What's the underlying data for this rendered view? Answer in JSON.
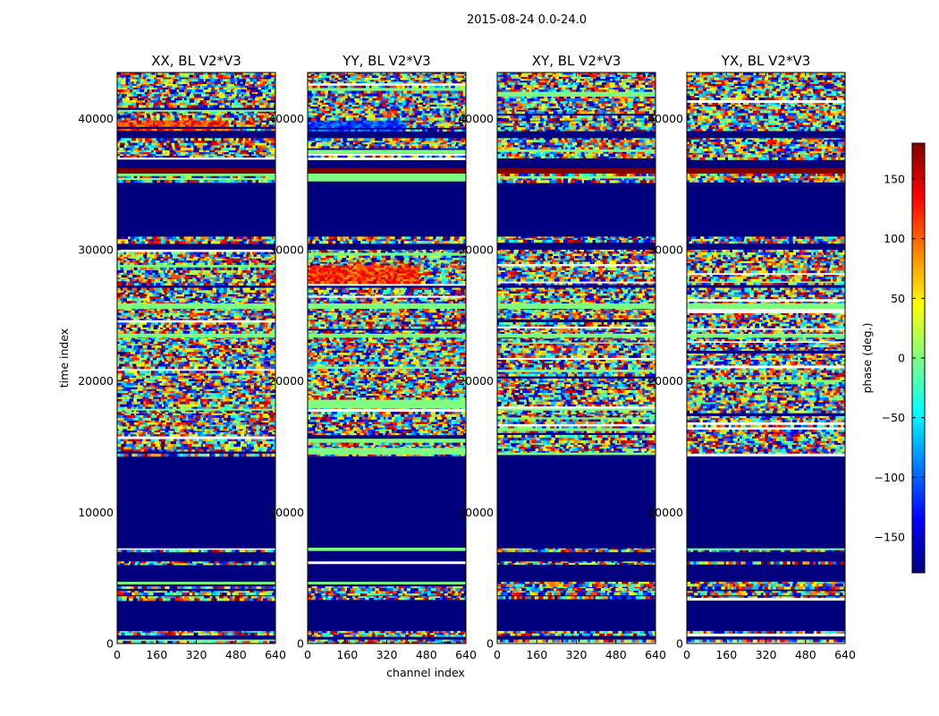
{
  "chart_data": {
    "type": "heatmap",
    "title": "2015-08-24 0.0-24.0",
    "xlabel": "channel index",
    "ylabel": "time index",
    "xlim": [
      0,
      640
    ],
    "ylim": [
      0,
      43500
    ],
    "x_ticks": [
      "0",
      "160",
      "320",
      "480",
      "640"
    ],
    "y_ticks": [
      "0",
      "10000",
      "20000",
      "30000",
      "40000"
    ],
    "colorbar": {
      "label": "phase (deg.)",
      "range": [
        -180,
        180
      ],
      "ticks": [
        "−150",
        "−100",
        "−50",
        "0",
        "50",
        "100",
        "150"
      ],
      "colormap": "jet",
      "colors": [
        "#00007f",
        "#0000ff",
        "#007fff",
        "#00ffff",
        "#7fff7f",
        "#ffff00",
        "#ff7f00",
        "#ff0000",
        "#7f0000"
      ]
    },
    "panels": [
      {
        "title": "XX, BL V2*V3",
        "bands": [
          {
            "y": [
              0,
              300
            ],
            "state": "noise"
          },
          {
            "y": [
              650,
              950
            ],
            "state": "noise"
          },
          {
            "y": [
              3400,
              3600
            ],
            "state": "noise"
          },
          {
            "y": [
              3800,
              4000
            ],
            "state": "noise"
          },
          {
            "y": [
              4200,
              4350
            ],
            "state": "noise"
          },
          {
            "y": [
              4500,
              4700
            ],
            "state": "green"
          },
          {
            "y": [
              6100,
              6250
            ],
            "state": "noise"
          },
          {
            "y": [
              7050,
              7250
            ],
            "state": "noise"
          },
          {
            "y": [
              14400,
              27100
            ],
            "state": "noise"
          },
          {
            "y": [
              25500,
              25900
            ],
            "state": "green"
          },
          {
            "y": [
              23300,
              23600
            ],
            "state": "green"
          },
          {
            "y": [
              27400,
              30000
            ],
            "state": "noise"
          },
          {
            "y": [
              30600,
              31000
            ],
            "state": "noise"
          },
          {
            "y": [
              35200,
              35800
            ],
            "state": "noise"
          },
          {
            "y": [
              35800,
              36200
            ],
            "state": "darkred"
          },
          {
            "y": [
              37000,
              38500
            ],
            "state": "noise"
          },
          {
            "y": [
              39100,
              40000
            ],
            "state": "redish"
          },
          {
            "y": [
              40000,
              43500
            ],
            "state": "noise"
          }
        ]
      },
      {
        "title": "YY, BL V2*V3",
        "bands": [
          {
            "y": [
              0,
              300
            ],
            "state": "noise"
          },
          {
            "y": [
              650,
              950
            ],
            "state": "noise"
          },
          {
            "y": [
              3400,
              3600
            ],
            "state": "noise"
          },
          {
            "y": [
              3800,
              4000
            ],
            "state": "noise"
          },
          {
            "y": [
              4200,
              4350
            ],
            "state": "noise"
          },
          {
            "y": [
              4500,
              4700
            ],
            "state": "green"
          },
          {
            "y": [
              6100,
              6250
            ],
            "state": "noise"
          },
          {
            "y": [
              7050,
              7300
            ],
            "state": "green"
          },
          {
            "y": [
              14400,
              27100
            ],
            "state": "noise"
          },
          {
            "y": [
              14400,
              14900
            ],
            "state": "green"
          },
          {
            "y": [
              15300,
              15600
            ],
            "state": "green"
          },
          {
            "y": [
              17900,
              18300
            ],
            "state": "green"
          },
          {
            "y": [
              25500,
              25900
            ],
            "state": "green"
          },
          {
            "y": [
              23300,
              23600
            ],
            "state": "green"
          },
          {
            "y": [
              27400,
              30000
            ],
            "state": "noise"
          },
          {
            "y": [
              27600,
              28800
            ],
            "state": "redish"
          },
          {
            "y": [
              30600,
              31000
            ],
            "state": "noise"
          },
          {
            "y": [
              35200,
              35800
            ],
            "state": "green"
          },
          {
            "y": [
              35800,
              36200
            ],
            "state": "darkred"
          },
          {
            "y": [
              37000,
              38500
            ],
            "state": "noise"
          },
          {
            "y": [
              37300,
              37500
            ],
            "state": "green"
          },
          {
            "y": [
              39100,
              40000
            ],
            "state": "blueish"
          },
          {
            "y": [
              40000,
              43500
            ],
            "state": "noise"
          }
        ]
      },
      {
        "title": "XY, BL V2*V3",
        "bands": [
          {
            "y": [
              0,
              300
            ],
            "state": "noise"
          },
          {
            "y": [
              650,
              950
            ],
            "state": "noise"
          },
          {
            "y": [
              3400,
              3600
            ],
            "state": "noise"
          },
          {
            "y": [
              3800,
              4000
            ],
            "state": "noise"
          },
          {
            "y": [
              4200,
              4350
            ],
            "state": "noise"
          },
          {
            "y": [
              4500,
              4700
            ],
            "state": "noise"
          },
          {
            "y": [
              6100,
              6250
            ],
            "state": "noise"
          },
          {
            "y": [
              7050,
              7250
            ],
            "state": "noise"
          },
          {
            "y": [
              14400,
              27100
            ],
            "state": "noise"
          },
          {
            "y": [
              25500,
              25900
            ],
            "state": "green"
          },
          {
            "y": [
              23300,
              23600
            ],
            "state": "green"
          },
          {
            "y": [
              27400,
              30000
            ],
            "state": "noise"
          },
          {
            "y": [
              30600,
              31000
            ],
            "state": "noise"
          },
          {
            "y": [
              35200,
              35800
            ],
            "state": "noise"
          },
          {
            "y": [
              35800,
              36200
            ],
            "state": "darkred"
          },
          {
            "y": [
              37000,
              38500
            ],
            "state": "noise"
          },
          {
            "y": [
              39100,
              40000
            ],
            "state": "noise"
          },
          {
            "y": [
              40000,
              43500
            ],
            "state": "noise"
          }
        ]
      },
      {
        "title": "YX, BL V2*V3",
        "bands": [
          {
            "y": [
              0,
              300
            ],
            "state": "noise"
          },
          {
            "y": [
              650,
              950
            ],
            "state": "noise"
          },
          {
            "y": [
              3400,
              3600
            ],
            "state": "noise"
          },
          {
            "y": [
              3800,
              4000
            ],
            "state": "noise"
          },
          {
            "y": [
              4200,
              4350
            ],
            "state": "noise"
          },
          {
            "y": [
              4500,
              4700
            ],
            "state": "noise"
          },
          {
            "y": [
              6100,
              6250
            ],
            "state": "noise"
          },
          {
            "y": [
              7050,
              7250
            ],
            "state": "noise"
          },
          {
            "y": [
              14400,
              27100
            ],
            "state": "noise"
          },
          {
            "y": [
              25500,
              25900
            ],
            "state": "green"
          },
          {
            "y": [
              23300,
              23600
            ],
            "state": "green"
          },
          {
            "y": [
              27400,
              30000
            ],
            "state": "noise"
          },
          {
            "y": [
              30600,
              31000
            ],
            "state": "noise"
          },
          {
            "y": [
              35200,
              35800
            ],
            "state": "noise"
          },
          {
            "y": [
              35800,
              36200
            ],
            "state": "darkred"
          },
          {
            "y": [
              37000,
              38500
            ],
            "state": "noise"
          },
          {
            "y": [
              39100,
              40000
            ],
            "state": "noise"
          },
          {
            "y": [
              40000,
              43500
            ],
            "state": "noise"
          }
        ]
      }
    ]
  }
}
